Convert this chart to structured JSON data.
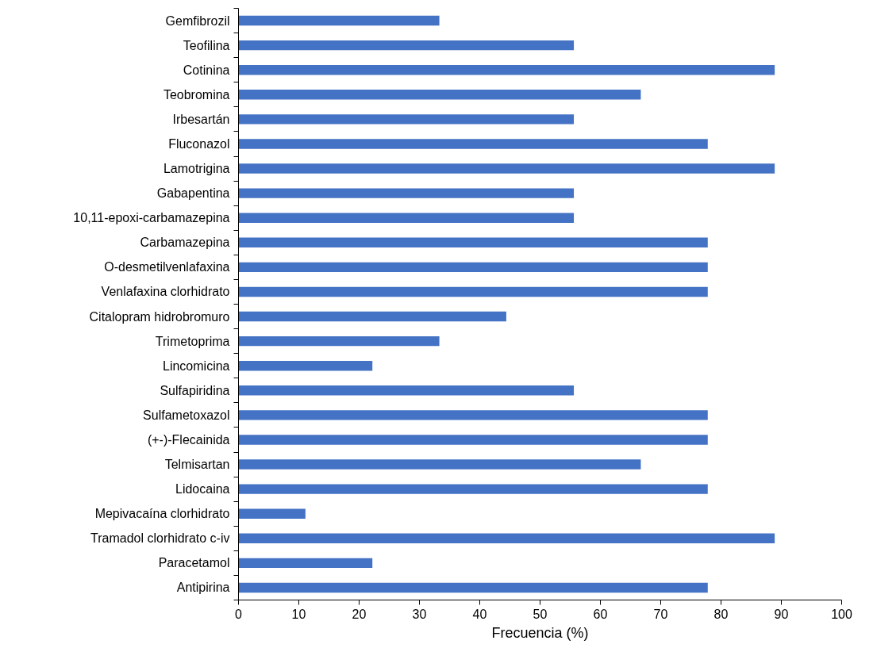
{
  "chart_data": {
    "type": "bar",
    "orientation": "horizontal",
    "xlabel": "Frecuencia (%)",
    "categories": [
      "Gemfibrozil",
      "Teofilina",
      "Cotinina",
      "Teobromina",
      "Irbesartán",
      "Fluconazol",
      "Lamotrigina",
      "Gabapentina",
      "10,11-epoxi-carbamazepina",
      "Carbamazepina",
      "O-desmetilvenlafaxina",
      "Venlafaxina clorhidrato",
      "Citalopram hidrobromuro",
      "Trimetoprima",
      "Lincomicina",
      "Sulfapiridina",
      "Sulfametoxazol",
      "(+-)-Flecainida",
      "Telmisartan",
      "Lidocaina",
      "Mepivacaína clorhidrato",
      "Tramadol clorhidrato c-iv",
      "Paracetamol",
      "Antipirina"
    ],
    "values": [
      33.3,
      55.6,
      88.9,
      66.7,
      55.6,
      77.8,
      88.9,
      55.6,
      55.6,
      77.8,
      77.8,
      77.8,
      44.4,
      33.3,
      22.2,
      55.6,
      77.8,
      77.8,
      66.7,
      77.8,
      11.1,
      88.9,
      22.2,
      77.8
    ],
    "color": "#4472c4",
    "xlim": [
      0,
      100
    ],
    "xticks": [
      0,
      10,
      20,
      30,
      40,
      50,
      60,
      70,
      80,
      90,
      100
    ],
    "grid": false
  }
}
